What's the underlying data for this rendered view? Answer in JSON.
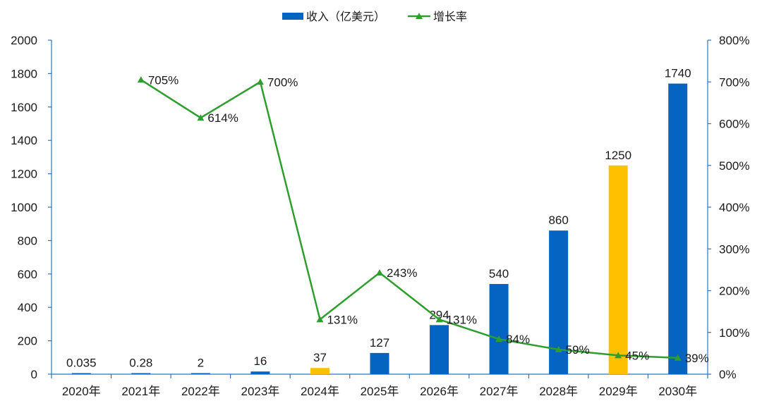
{
  "chart_data": {
    "type": "bar+line",
    "categories": [
      "2020年",
      "2021年",
      "2022年",
      "2023年",
      "2024年",
      "2025年",
      "2026年",
      "2027年",
      "2028年",
      "2029年",
      "2030年"
    ],
    "series": [
      {
        "name": "收入（亿美元）",
        "type": "bar",
        "axis": "left",
        "values": [
          0.035,
          0.28,
          2,
          16,
          37,
          127,
          294,
          540,
          860,
          1250,
          1740
        ],
        "labels": [
          "0.035",
          "0.28",
          "2",
          "16",
          "37",
          "127",
          "294",
          "540",
          "860",
          "1250",
          "1740"
        ],
        "color": "#0563C1",
        "highlight_color": "#FFC000",
        "highlight_indices": [
          4,
          9
        ]
      },
      {
        "name": "增长率",
        "type": "line",
        "axis": "right",
        "values": [
          null,
          705,
          614,
          700,
          131,
          243,
          131,
          84,
          59,
          45,
          39
        ],
        "labels": [
          "",
          "705%",
          "614%",
          "700%",
          "131%",
          "243%",
          "131%",
          "84%",
          "59%",
          "45%",
          "39%"
        ],
        "color": "#2E9E2E",
        "marker": "triangle"
      }
    ],
    "y_left": {
      "min": 0,
      "max": 2000,
      "step": 200,
      "ticks": [
        "0",
        "200",
        "400",
        "600",
        "800",
        "1000",
        "1200",
        "1400",
        "1600",
        "1800",
        "2000"
      ]
    },
    "y_right": {
      "min": 0,
      "max": 800,
      "step": 100,
      "ticks": [
        "0%",
        "100%",
        "200%",
        "300%",
        "400%",
        "500%",
        "600%",
        "700%",
        "800%"
      ]
    },
    "grid": false,
    "legend": "top-center",
    "axis_color": "#2E75B6"
  }
}
